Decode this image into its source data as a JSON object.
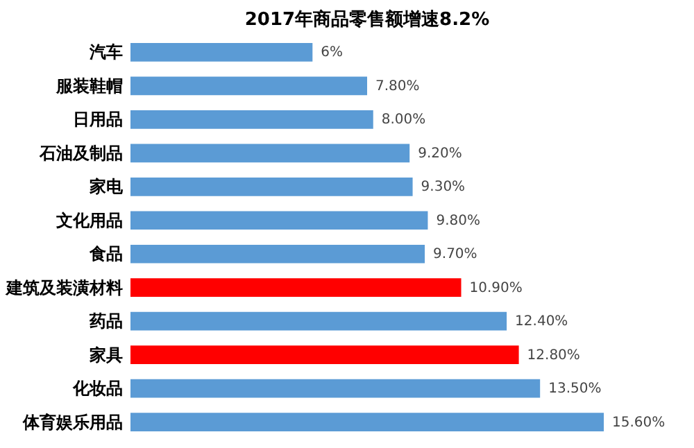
{
  "chart_data": {
    "type": "bar",
    "orientation": "horizontal",
    "title": "2017年商品零售额增速8.2%",
    "categories": [
      "汽车",
      "服装鞋帽",
      "日用品",
      "石油及制品",
      "家电",
      "文化用品",
      "食品",
      "建筑及装潢材料",
      "药品",
      "家具",
      "化妆品",
      "体育娱乐用品"
    ],
    "values": [
      6,
      7.8,
      8.0,
      9.2,
      9.3,
      9.8,
      9.7,
      10.9,
      12.4,
      12.8,
      13.5,
      15.6
    ],
    "colors": [
      "#5b9bd5",
      "#5b9bd5",
      "#5b9bd5",
      "#5b9bd5",
      "#5b9bd5",
      "#5b9bd5",
      "#5b9bd5",
      "#ff0000",
      "#5b9bd5",
      "#ff0000",
      "#5b9bd5",
      "#5b9bd5"
    ],
    "value_labels": [
      "6%",
      "7.80%",
      "8.00%",
      "9.20%",
      "9.30%",
      "9.80%",
      "9.70%",
      "10.90%",
      "12.40%",
      "12.80%",
      "13.50%",
      "15.60%"
    ]
  }
}
